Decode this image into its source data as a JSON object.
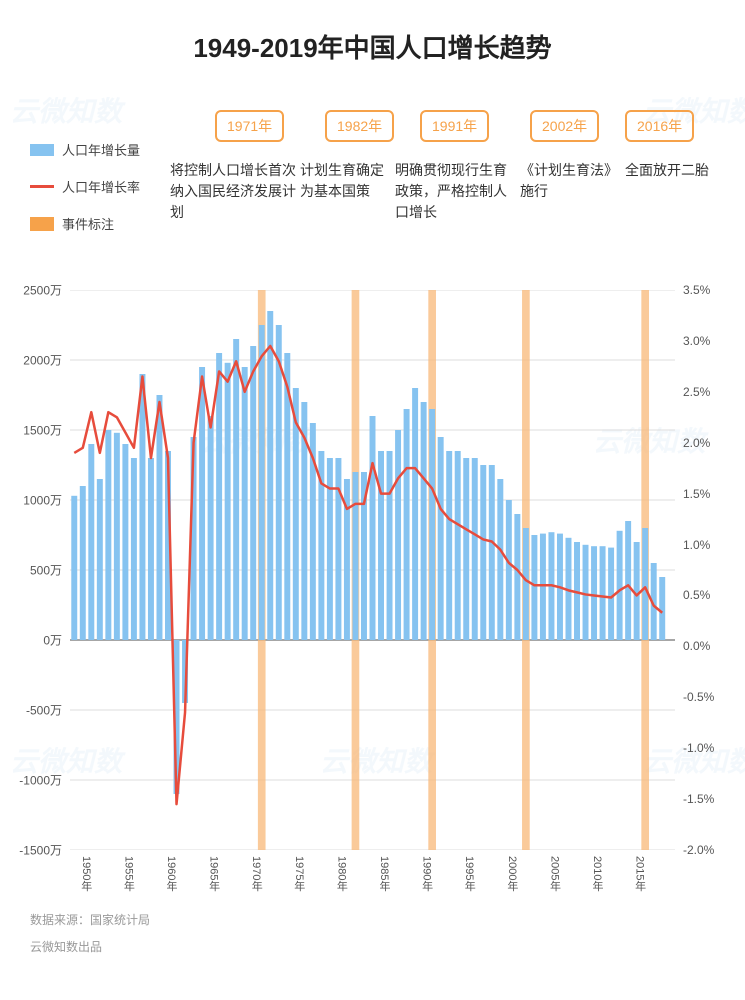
{
  "title": "1949-2019年中国人口增长趋势",
  "title_fontsize": 26,
  "legend": {
    "bar": {
      "label": "人口年增长量",
      "color": "#86c3f0"
    },
    "line": {
      "label": "人口年增长率",
      "color": "#e74c3c"
    },
    "event": {
      "label": "事件标注",
      "color": "#f6a24a"
    }
  },
  "events": [
    {
      "year": 1971,
      "tag": "1971年",
      "desc": "将控制人口增长首次纳入国民经济发展计划"
    },
    {
      "year": 1982,
      "tag": "1982年",
      "desc": "计划生育确定为基本国策"
    },
    {
      "year": 1991,
      "tag": "1991年",
      "desc": "明确贯彻现行生育政策，严格控制人口增长"
    },
    {
      "year": 2002,
      "tag": "2002年",
      "desc": "《计划生育法》施行"
    },
    {
      "year": 2016,
      "tag": "2016年",
      "desc": "全面放开二胎"
    }
  ],
  "event_tag_border_color": "#f6a24a",
  "event_tag_text_color": "#f6a24a",
  "event_bar_color": "#f8b878",
  "chart": {
    "type": "bar+line",
    "x_start_year": 1949,
    "x_end_year": 2019,
    "x_tick_years": [
      1950,
      1955,
      1960,
      1965,
      1970,
      1975,
      1980,
      1985,
      1990,
      1995,
      2000,
      2005,
      2010,
      2015
    ],
    "x_tick_suffix": "年",
    "y_left": {
      "min": -1500,
      "max": 2500,
      "step": 500,
      "suffix": "万"
    },
    "y_right": {
      "min": -2.0,
      "max": 3.5,
      "step": 0.5,
      "suffix": "%"
    },
    "bar_color": "#86c3f0",
    "line_color": "#e74c3c",
    "line_width": 2.5,
    "zero_line_color": "#888888",
    "grid_color": "#dddddd",
    "background_color": "#ffffff",
    "bar_values_wan": [
      1030,
      1100,
      1400,
      1150,
      1500,
      1480,
      1400,
      1300,
      1900,
      1300,
      1750,
      1350,
      -1100,
      -450,
      1450,
      1950,
      1600,
      2050,
      1980,
      2150,
      1950,
      2100,
      2250,
      2350,
      2250,
      2050,
      1800,
      1700,
      1550,
      1350,
      1300,
      1300,
      1150,
      1200,
      1200,
      1600,
      1350,
      1350,
      1500,
      1650,
      1800,
      1700,
      1650,
      1450,
      1350,
      1350,
      1300,
      1300,
      1250,
      1250,
      1150,
      1000,
      900,
      800,
      750,
      760,
      770,
      760,
      730,
      700,
      680,
      670,
      670,
      660,
      780,
      850,
      700,
      800,
      550,
      450
    ],
    "line_values_pct": [
      1.9,
      1.95,
      2.3,
      1.9,
      2.3,
      2.25,
      2.1,
      1.95,
      2.65,
      1.85,
      2.4,
      1.85,
      -1.55,
      -0.65,
      2.0,
      2.65,
      2.15,
      2.7,
      2.6,
      2.8,
      2.5,
      2.7,
      2.85,
      2.95,
      2.8,
      2.55,
      2.2,
      2.05,
      1.85,
      1.6,
      1.55,
      1.55,
      1.35,
      1.4,
      1.4,
      1.8,
      1.5,
      1.5,
      1.65,
      1.75,
      1.75,
      1.65,
      1.55,
      1.35,
      1.25,
      1.2,
      1.15,
      1.1,
      1.05,
      1.03,
      0.95,
      0.82,
      0.75,
      0.65,
      0.6,
      0.6,
      0.6,
      0.58,
      0.55,
      0.53,
      0.51,
      0.5,
      0.49,
      0.48,
      0.55,
      0.6,
      0.5,
      0.58,
      0.4,
      0.33
    ]
  },
  "footer": {
    "source": "数据来源：国家统计局",
    "producer": "云微知数出品"
  },
  "watermark_text": "云微知数"
}
